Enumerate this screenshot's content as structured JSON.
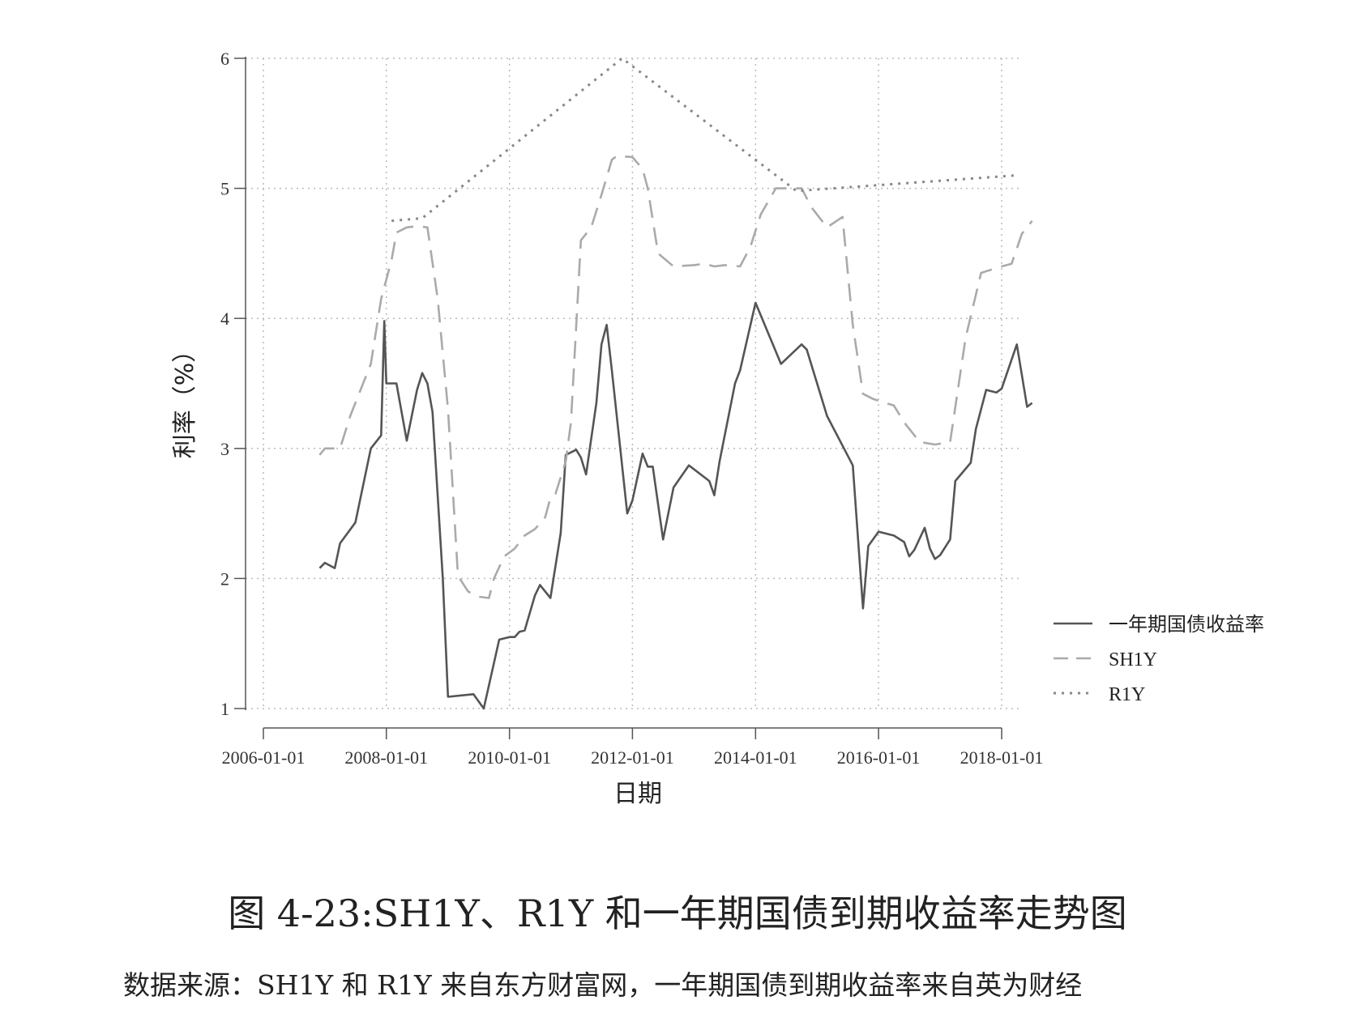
{
  "caption": "图 4-23:SH1Y、R1Y 和一年期国债到期收益率走势图",
  "source_note": "数据来源：SH1Y 和 R1Y 来自东方财富网，一年期国债到期收益率来自英为财经",
  "chart_data": {
    "type": "line",
    "xlabel": "日期",
    "ylabel": "利率（%）",
    "x_range": [
      "2006-01-01",
      "2018-01-01"
    ],
    "ylim": [
      1,
      6
    ],
    "x_ticks": [
      "2006-01-01",
      "2008-01-01",
      "2010-01-01",
      "2012-01-01",
      "2014-01-01",
      "2016-01-01",
      "2018-01-01"
    ],
    "y_ticks": [
      1,
      2,
      3,
      4,
      5,
      6
    ],
    "grid": true,
    "legend_position": "right",
    "series": [
      {
        "name": "一年期国债收益率",
        "color": "#555555",
        "style": "solid",
        "points": [
          [
            "2006-12-01",
            2.08
          ],
          [
            "2007-01-01",
            2.12
          ],
          [
            "2007-03-01",
            2.08
          ],
          [
            "2007-04-01",
            2.27
          ],
          [
            "2007-07-01",
            2.43
          ],
          [
            "2007-10-01",
            3.0
          ],
          [
            "2008-01-01",
            3.5
          ],
          [
            "2007-12-01",
            3.1
          ],
          [
            "2007-12-20",
            3.98
          ],
          [
            "2008-03-01",
            3.5
          ],
          [
            "2008-05-01",
            3.06
          ],
          [
            "2008-07-01",
            3.45
          ],
          [
            "2008-08-01",
            3.58
          ],
          [
            "2008-09-01",
            3.5
          ],
          [
            "2008-10-01",
            3.28
          ],
          [
            "2008-12-01",
            2.0
          ],
          [
            "2009-01-01",
            1.09
          ],
          [
            "2009-06-01",
            1.11
          ],
          [
            "2009-08-01",
            1.0
          ],
          [
            "2009-11-01",
            1.53
          ],
          [
            "2010-01-01",
            1.55
          ],
          [
            "2010-02-01",
            1.55
          ],
          [
            "2010-03-01",
            1.59
          ],
          [
            "2010-04-01",
            1.6
          ],
          [
            "2010-06-01",
            1.87
          ],
          [
            "2010-07-01",
            1.95
          ],
          [
            "2010-09-01",
            1.85
          ],
          [
            "2010-11-01",
            2.35
          ],
          [
            "2010-12-01",
            2.95
          ],
          [
            "2011-02-01",
            2.99
          ],
          [
            "2011-03-01",
            2.93
          ],
          [
            "2011-04-01",
            2.8
          ],
          [
            "2011-06-01",
            3.35
          ],
          [
            "2011-07-01",
            3.8
          ],
          [
            "2011-08-01",
            3.95
          ],
          [
            "2011-09-01",
            3.6
          ],
          [
            "2011-12-01",
            2.5
          ],
          [
            "2012-01-01",
            2.6
          ],
          [
            "2012-03-01",
            2.96
          ],
          [
            "2012-04-01",
            2.86
          ],
          [
            "2012-05-01",
            2.86
          ],
          [
            "2012-07-01",
            2.3
          ],
          [
            "2012-09-01",
            2.7
          ],
          [
            "2012-12-01",
            2.87
          ],
          [
            "2013-04-01",
            2.75
          ],
          [
            "2013-05-01",
            2.64
          ],
          [
            "2013-06-01",
            2.9
          ],
          [
            "2013-09-01",
            3.5
          ],
          [
            "2013-10-01",
            3.6
          ],
          [
            "2014-01-01",
            4.12
          ],
          [
            "2014-06-01",
            3.65
          ],
          [
            "2014-10-01",
            3.8
          ],
          [
            "2014-11-01",
            3.76
          ],
          [
            "2015-03-01",
            3.25
          ],
          [
            "2015-08-01",
            2.87
          ],
          [
            "2015-10-01",
            1.77
          ],
          [
            "2015-11-01",
            2.25
          ],
          [
            "2016-01-01",
            2.36
          ],
          [
            "2016-04-01",
            2.33
          ],
          [
            "2016-06-01",
            2.28
          ],
          [
            "2016-07-01",
            2.17
          ],
          [
            "2016-08-01",
            2.22
          ],
          [
            "2016-10-01",
            2.39
          ],
          [
            "2016-11-01",
            2.23
          ],
          [
            "2016-12-01",
            2.15
          ],
          [
            "2017-01-01",
            2.18
          ],
          [
            "2017-03-01",
            2.3
          ],
          [
            "2017-04-01",
            2.75
          ],
          [
            "2017-07-01",
            2.89
          ],
          [
            "2017-08-01",
            3.15
          ],
          [
            "2017-10-01",
            3.45
          ],
          [
            "2017-12-01",
            3.43
          ],
          [
            "2018-01-01",
            3.46
          ],
          [
            "2018-04-01",
            3.8
          ],
          [
            "2018-06-01",
            3.32
          ],
          [
            "2018-07-01",
            3.35
          ]
        ]
      },
      {
        "name": "SH1Y",
        "color": "#aaaaaa",
        "style": "dashed",
        "points": [
          [
            "2006-12-01",
            2.95
          ],
          [
            "2007-01-01",
            3.0
          ],
          [
            "2007-04-01",
            3.0
          ],
          [
            "2007-06-01",
            3.25
          ],
          [
            "2007-08-01",
            3.45
          ],
          [
            "2007-10-01",
            3.65
          ],
          [
            "2007-12-01",
            4.15
          ],
          [
            "2008-02-01",
            4.45
          ],
          [
            "2008-03-01",
            4.66
          ],
          [
            "2008-05-01",
            4.7
          ],
          [
            "2008-07-01",
            4.71
          ],
          [
            "2008-09-01",
            4.7
          ],
          [
            "2008-11-01",
            4.15
          ],
          [
            "2009-01-01",
            3.3
          ],
          [
            "2009-03-01",
            2.02
          ],
          [
            "2009-05-01",
            1.9
          ],
          [
            "2009-07-01",
            1.86
          ],
          [
            "2009-09-01",
            1.85
          ],
          [
            "2009-10-01",
            2.0
          ],
          [
            "2009-12-01",
            2.17
          ],
          [
            "2010-02-01",
            2.23
          ],
          [
            "2010-04-01",
            2.33
          ],
          [
            "2010-06-01",
            2.38
          ],
          [
            "2010-08-01",
            2.47
          ],
          [
            "2010-09-01",
            2.62
          ],
          [
            "2010-10-01",
            2.65
          ],
          [
            "2010-12-01",
            2.9
          ],
          [
            "2011-01-01",
            3.2
          ],
          [
            "2011-03-01",
            4.6
          ],
          [
            "2011-05-01",
            4.7
          ],
          [
            "2011-07-01",
            4.95
          ],
          [
            "2011-09-01",
            5.22
          ],
          [
            "2011-10-01",
            5.25
          ],
          [
            "2012-01-01",
            5.24
          ],
          [
            "2012-03-01",
            5.15
          ],
          [
            "2012-04-01",
            5.0
          ],
          [
            "2012-06-01",
            4.5
          ],
          [
            "2012-09-01",
            4.4
          ],
          [
            "2013-01-01",
            4.41
          ],
          [
            "2013-03-01",
            4.42
          ],
          [
            "2013-05-01",
            4.4
          ],
          [
            "2013-07-01",
            4.41
          ],
          [
            "2013-10-01",
            4.4
          ],
          [
            "2013-12-01",
            4.55
          ],
          [
            "2014-02-01",
            4.8
          ],
          [
            "2014-05-01",
            5.0
          ],
          [
            "2014-10-01",
            5.0
          ],
          [
            "2014-12-01",
            4.85
          ],
          [
            "2015-03-01",
            4.7
          ],
          [
            "2015-06-01",
            4.78
          ],
          [
            "2015-08-01",
            3.95
          ],
          [
            "2015-10-01",
            3.42
          ],
          [
            "2015-12-01",
            3.38
          ],
          [
            "2016-04-01",
            3.33
          ],
          [
            "2016-06-01",
            3.2
          ],
          [
            "2016-09-01",
            3.05
          ],
          [
            "2016-12-01",
            3.03
          ],
          [
            "2017-03-01",
            3.05
          ],
          [
            "2017-06-01",
            3.85
          ],
          [
            "2017-09-01",
            4.35
          ],
          [
            "2018-01-01",
            4.4
          ],
          [
            "2018-03-01",
            4.42
          ],
          [
            "2018-05-01",
            4.65
          ],
          [
            "2018-07-01",
            4.75
          ]
        ]
      },
      {
        "name": "R1Y",
        "color": "#888888",
        "style": "dotted",
        "points": [
          [
            "2008-02-01",
            4.75
          ],
          [
            "2008-08-01",
            4.77
          ],
          [
            "2011-11-01",
            6.0
          ],
          [
            "2014-09-01",
            4.98
          ],
          [
            "2018-04-01",
            5.1
          ]
        ]
      }
    ]
  }
}
